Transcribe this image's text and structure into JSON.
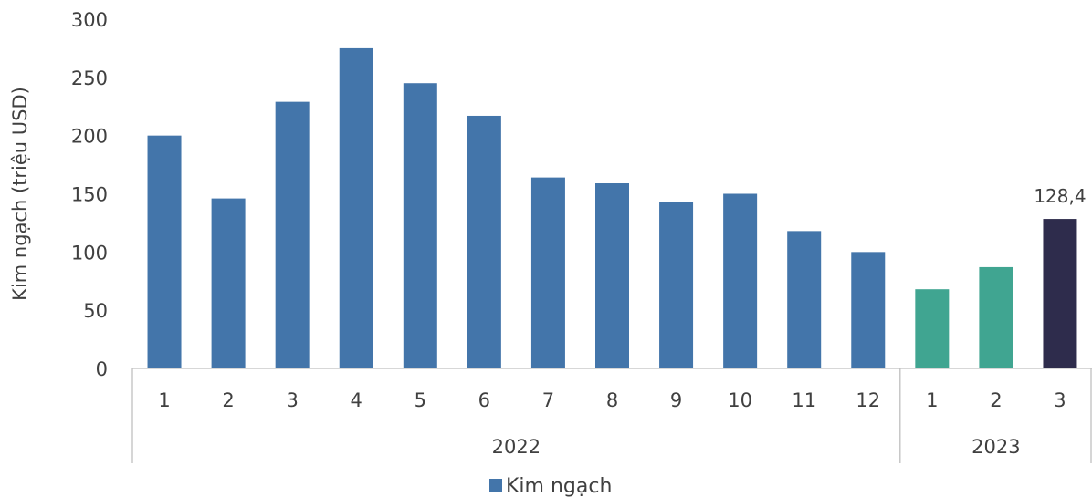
{
  "chart_data": {
    "type": "bar",
    "title": "",
    "ylabel": "Kim ngạch (triệu USD)",
    "xlabel": "",
    "ylim": [
      0,
      300
    ],
    "yticks": [
      0,
      50,
      100,
      150,
      200,
      250,
      300
    ],
    "grid": false,
    "legend_position": "bottom",
    "categories": [
      "1",
      "2",
      "3",
      "4",
      "5",
      "6",
      "7",
      "8",
      "9",
      "10",
      "11",
      "12",
      "1",
      "2",
      "3"
    ],
    "groups": [
      {
        "label": "2022",
        "count": 12
      },
      {
        "label": "2023",
        "count": 3
      }
    ],
    "series": [
      {
        "name": "Kim ngạch",
        "values": [
          200,
          146,
          229,
          275,
          245,
          217,
          164,
          159,
          143,
          150,
          118,
          100,
          68,
          87,
          128.4
        ],
        "colors": [
          "#4375AA",
          "#4375AA",
          "#4375AA",
          "#4375AA",
          "#4375AA",
          "#4375AA",
          "#4375AA",
          "#4375AA",
          "#4375AA",
          "#4375AA",
          "#4375AA",
          "#4375AA",
          "#40A591",
          "#40A591",
          "#2E2C4C"
        ]
      }
    ],
    "data_labels": [
      {
        "index": 14,
        "text": "128,4"
      }
    ],
    "legend": {
      "swatch_color": "#4375AA"
    }
  }
}
